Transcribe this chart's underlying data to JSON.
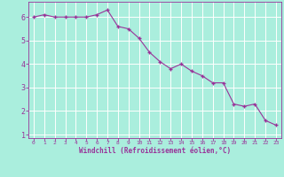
{
  "x": [
    0,
    1,
    2,
    3,
    4,
    5,
    6,
    7,
    8,
    9,
    10,
    11,
    12,
    13,
    14,
    15,
    16,
    17,
    18,
    19,
    20,
    21,
    22,
    23
  ],
  "y": [
    6.0,
    6.1,
    6.0,
    6.0,
    6.0,
    6.0,
    6.1,
    6.3,
    5.6,
    5.5,
    5.1,
    4.5,
    4.1,
    3.8,
    4.0,
    3.7,
    3.5,
    3.2,
    3.2,
    2.3,
    2.2,
    2.3,
    1.6,
    1.4
  ],
  "line_color": "#993399",
  "marker": "P",
  "marker_size": 2.5,
  "background_color": "#aaeedd",
  "grid_color": "#ffffff",
  "xlabel": "Windchill (Refroidissement éolien,°C)",
  "xlabel_color": "#993399",
  "tick_color": "#993399",
  "xlim": [
    -0.5,
    23.5
  ],
  "ylim": [
    0.85,
    6.65
  ],
  "yticks": [
    1,
    2,
    3,
    4,
    5,
    6
  ],
  "xticks": [
    0,
    1,
    2,
    3,
    4,
    5,
    6,
    7,
    8,
    9,
    10,
    11,
    12,
    13,
    14,
    15,
    16,
    17,
    18,
    19,
    20,
    21,
    22,
    23
  ],
  "figsize": [
    3.2,
    2.0
  ],
  "dpi": 100
}
